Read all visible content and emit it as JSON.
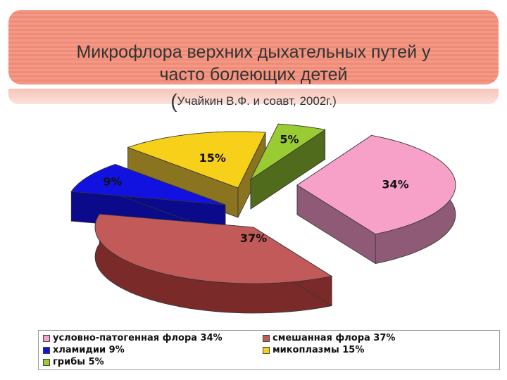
{
  "title_line1": "Микрофлора верхних дыхательных путей у",
  "title_line2": "часто болеющих детей",
  "subtitle_open": "(",
  "subtitle_text": "Учайкин В.Ф. и соавт, 2002г.)",
  "chart_data": {
    "type": "pie",
    "title": "Микрофлора верхних дыхательных путей у часто болеющих детей",
    "slices": [
      {
        "label": "условно-патогенная флора 34%",
        "value": 34,
        "data_label": "34%",
        "color": "#f7a1c9",
        "side_color": "#8e5a76"
      },
      {
        "label": "смешанная флора 37%",
        "value": 37,
        "data_label": "37%",
        "color": "#c15a58",
        "side_color": "#7b2a2a"
      },
      {
        "label": "хламидии 9%",
        "value": 9,
        "data_label": "9%",
        "color": "#1212e0",
        "side_color": "#0a0a8a"
      },
      {
        "label": "микоплазмы 15%",
        "value": 15,
        "data_label": "15%",
        "color": "#f7d01a",
        "side_color": "#8a7420"
      },
      {
        "label": "грибы 5%",
        "value": 5,
        "data_label": "5%",
        "color": "#99cc33",
        "side_color": "#4f6b1b"
      }
    ],
    "legend_position": "bottom"
  }
}
